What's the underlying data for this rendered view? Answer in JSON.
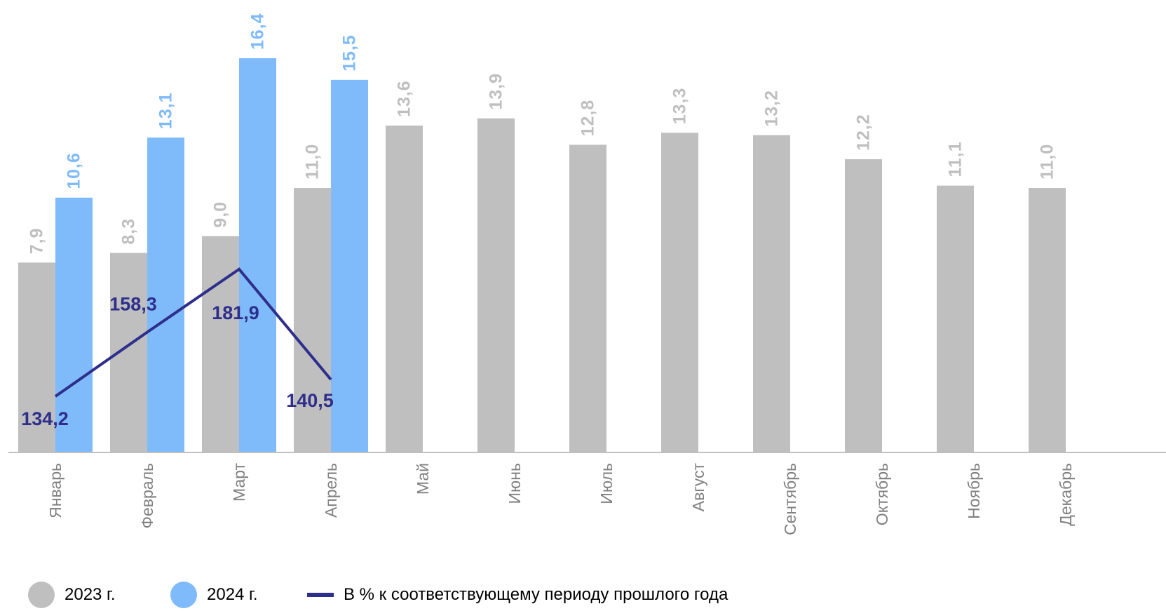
{
  "colors": {
    "series_2023": "#bfbfbf",
    "series_2024": "#7fbbfa",
    "line": "#2e2e8c",
    "axis": "#bfbfbf",
    "tick_label": "#808080"
  },
  "chart_data": {
    "type": "bar",
    "title": "",
    "xlabel": "",
    "ylabel": "",
    "ylim": [
      0,
      18
    ],
    "grid": false,
    "legend_position": "bottom",
    "categories": [
      "Январь",
      "Февраль",
      "Март",
      "Апрель",
      "Май",
      "Июнь",
      "Июль",
      "Август",
      "Сентябрь",
      "Октябрь",
      "Ноябрь",
      "Декабрь"
    ],
    "series": [
      {
        "name": "2023 г.",
        "type": "bar",
        "values": [
          7.9,
          8.3,
          9.0,
          11.0,
          13.6,
          13.9,
          12.8,
          13.3,
          13.2,
          12.2,
          11.1,
          11.0
        ],
        "labels": [
          "7,9",
          "8,3",
          "9,0",
          "11,0",
          "13,6",
          "13,9",
          "12,8",
          "13,3",
          "13,2",
          "12,2",
          "11,1",
          "11,0"
        ]
      },
      {
        "name": "2024 г.",
        "type": "bar",
        "values": [
          10.6,
          13.1,
          16.4,
          15.5,
          null,
          null,
          null,
          null,
          null,
          null,
          null,
          null
        ],
        "labels": [
          "10,6",
          "13,1",
          "16,4",
          "15,5",
          null,
          null,
          null,
          null,
          null,
          null,
          null,
          null
        ]
      },
      {
        "name": "В % к соответствующему периоду прошлого года",
        "type": "line",
        "axis": "secondary",
        "values": [
          134.2,
          158.3,
          181.9,
          140.5,
          null,
          null,
          null,
          null,
          null,
          null,
          null,
          null
        ],
        "labels": [
          "134,2",
          "158,3",
          "181,9",
          "140,5",
          null,
          null,
          null,
          null,
          null,
          null,
          null,
          null
        ]
      }
    ]
  },
  "legend": {
    "items": [
      {
        "label": "2023 г.",
        "swatch": "circle"
      },
      {
        "label": "2024 г.",
        "swatch": "circle"
      },
      {
        "label": "В % к соответствующему периоду прошлого года",
        "swatch": "line"
      }
    ]
  }
}
